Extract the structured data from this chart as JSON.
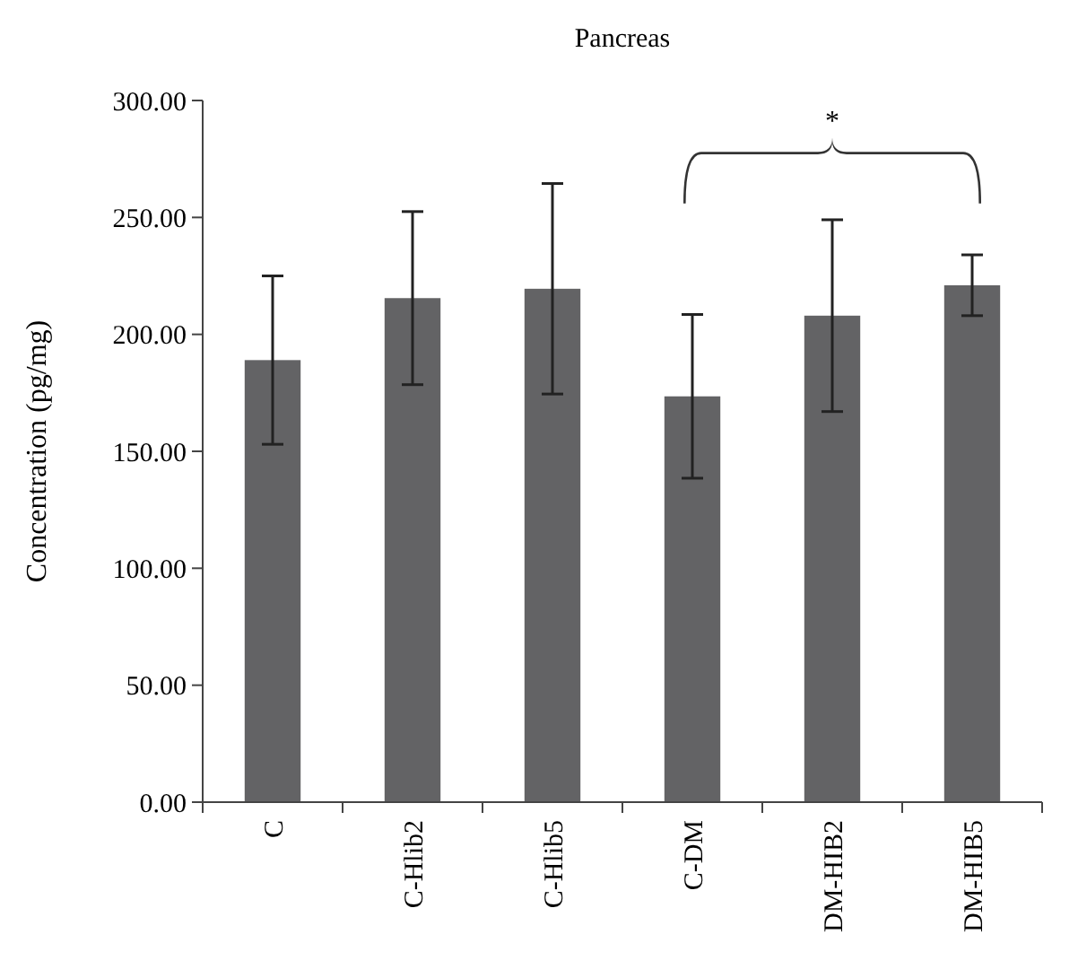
{
  "chart_data": {
    "type": "bar",
    "title": "Pancreas",
    "ylabel": "Concentration (pg/mg)",
    "categories": [
      "C",
      "C-Hlib2",
      "C-Hlib5",
      "C-DM",
      "DM-HIB2",
      "DM-HIB5"
    ],
    "values": [
      189,
      215.5,
      219.5,
      173.5,
      208,
      221
    ],
    "errors": [
      36,
      37,
      45,
      35,
      41,
      13
    ],
    "color": "#636365",
    "ylim": [
      0,
      300
    ],
    "yticks": [
      {
        "value": 0,
        "label": "0.00"
      },
      {
        "value": 50,
        "label": "50.00"
      },
      {
        "value": 100,
        "label": "100.00"
      },
      {
        "value": 150,
        "label": "150.00"
      },
      {
        "value": 200,
        "label": "200.00"
      },
      {
        "value": 250,
        "label": "250.00"
      },
      {
        "value": 300,
        "label": "300.00"
      }
    ],
    "annotations": [
      "*"
    ],
    "grid": false
  }
}
